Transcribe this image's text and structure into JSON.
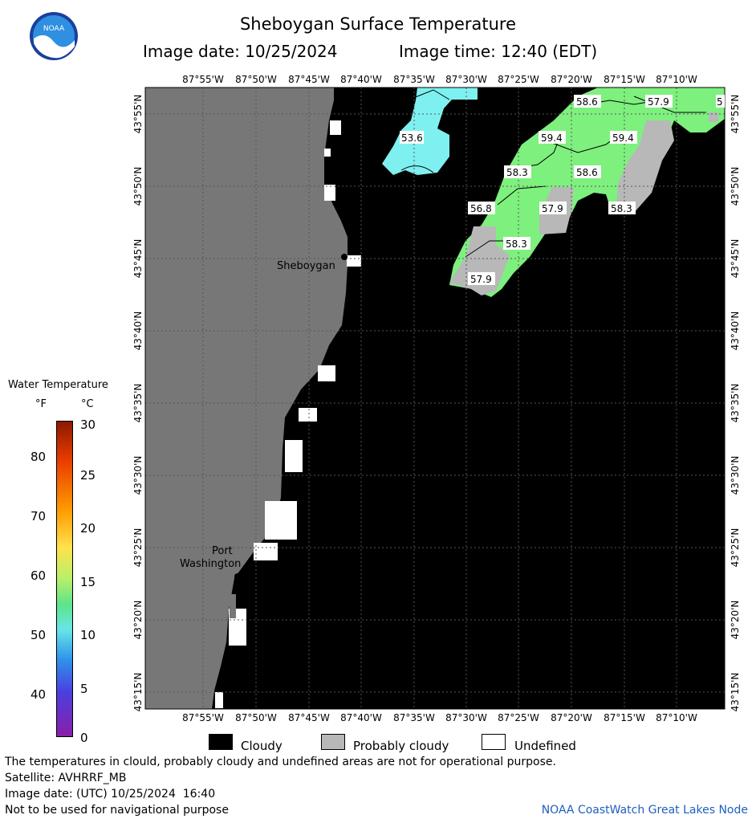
{
  "header": {
    "title": "Sheboygan Surface Temperature",
    "image_date": "Image date: 10/25/2024",
    "image_time": "Image time: 12:40 (EDT)"
  },
  "logo": {
    "text": "NOAA"
  },
  "map": {
    "lon_labels": [
      "87°55'W",
      "87°50'W",
      "87°45'W",
      "87°40'W",
      "87°35'W",
      "87°30'W",
      "87°25'W",
      "87°20'W",
      "87°15'W",
      "87°10'W"
    ],
    "lat_labels": [
      "43°55'N",
      "43°50'N",
      "43°45'N",
      "43°40'N",
      "43°35'N",
      "43°30'N",
      "43°25'N",
      "43°20'N",
      "43°15'N"
    ],
    "cities": [
      "Sheboygan",
      "Port",
      "Washington"
    ],
    "temp_labels": [
      "53.6",
      "58.6",
      "57.9",
      "5",
      "59.4",
      "59.4",
      "58.3",
      "58.6",
      "56.8",
      "57.9",
      "58.3",
      "58.3",
      "57.9"
    ],
    "colors": {
      "land": "#777777",
      "cloudy": "#000000",
      "probably_cloudy": "#b8b8b8",
      "undefined": "#ffffff",
      "warm": "#7ef07e",
      "cool": "#7ff0f0"
    }
  },
  "legend": {
    "title": "Water Temperature",
    "unit_f": "°F",
    "unit_c": "°C",
    "f_ticks": [
      "80",
      "70",
      "60",
      "50",
      "40"
    ],
    "c_ticks": [
      "30",
      "25",
      "20",
      "15",
      "10",
      "5",
      "0"
    ]
  },
  "key": {
    "cloudy": "Cloudy",
    "probably_cloudy": "Probably cloudy",
    "undefined": "Undefined"
  },
  "footer": {
    "line1": "The temperatures in clould, probably cloudy and undefined areas are not for operational purpose.",
    "line2": "Satellite: AVHRRF_MB",
    "line3": "Image date: (UTC) 10/25/2024  16:40",
    "line4": "Not to be used for navigational purpose",
    "credit": "NOAA CoastWatch Great Lakes Node"
  }
}
